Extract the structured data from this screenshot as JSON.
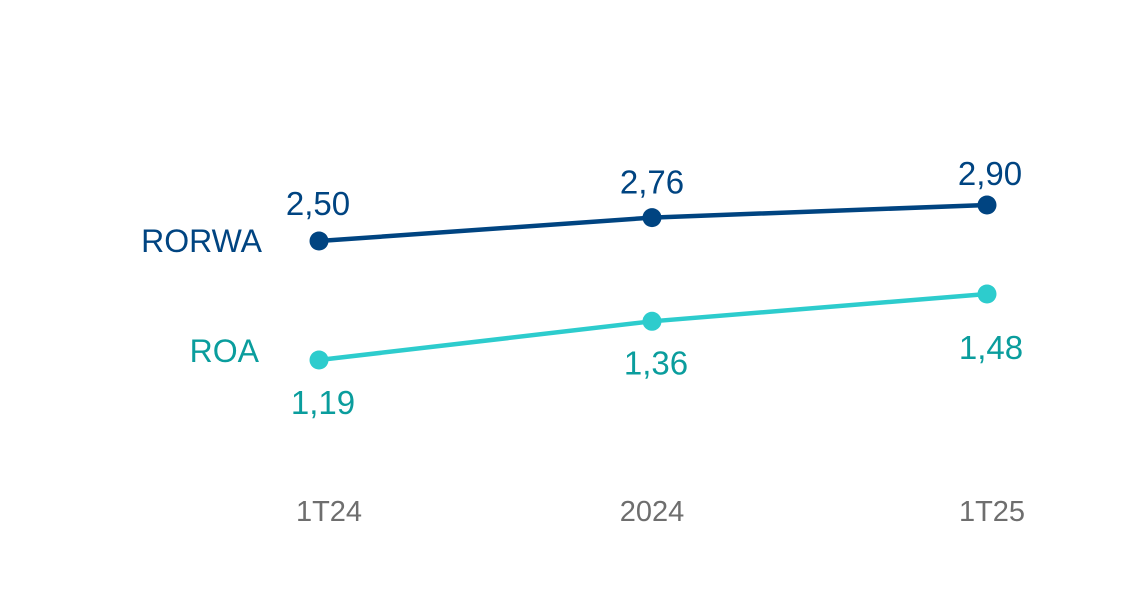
{
  "chart_data": {
    "type": "line",
    "title": "",
    "xlabel": "",
    "ylabel": "",
    "categories": [
      "1T24",
      "2024",
      "1T25"
    ],
    "series": [
      {
        "name": "RORWA",
        "values": [
          2.5,
          2.76,
          2.9
        ],
        "value_labels": [
          "2,50",
          "2,76",
          "2,90"
        ],
        "color": "#004481",
        "label_color": "#004481"
      },
      {
        "name": "ROA",
        "values": [
          1.19,
          1.36,
          1.48
        ],
        "value_labels": [
          "1,19",
          "1,36",
          "1,48"
        ],
        "color": "#2dcccd",
        "label_color": "#0a9d9d"
      }
    ],
    "grid": false,
    "legend": "none"
  }
}
